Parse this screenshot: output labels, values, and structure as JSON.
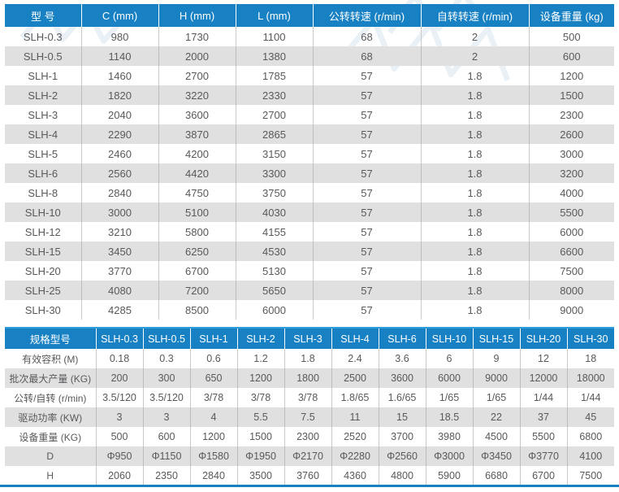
{
  "accent_color": "#1781c4",
  "alt_row_color": "#e0e0e0",
  "text_color": "#58595b",
  "watermark_icon": "zigzag-watermark",
  "table1": {
    "headers": [
      "型 号",
      "C (mm)",
      "H (mm)",
      "L (mm)",
      "公转转速 (r/min)",
      "自转转速 (r/min)",
      "设备重量 (kg)"
    ],
    "rows": [
      [
        "SLH-0.3",
        "980",
        "1730",
        "1100",
        "68",
        "2",
        "500"
      ],
      [
        "SLH-0.5",
        "1140",
        "2000",
        "1380",
        "68",
        "2",
        "600"
      ],
      [
        "SLH-1",
        "1460",
        "2700",
        "1785",
        "57",
        "1.8",
        "1200"
      ],
      [
        "SLH-2",
        "1820",
        "3220",
        "2330",
        "57",
        "1.8",
        "1500"
      ],
      [
        "SLH-3",
        "2040",
        "3600",
        "2700",
        "57",
        "1.8",
        "2300"
      ],
      [
        "SLH-4",
        "2290",
        "3870",
        "2865",
        "57",
        "1.8",
        "2600"
      ],
      [
        "SLH-5",
        "2460",
        "4200",
        "3150",
        "57",
        "1.8",
        "3000"
      ],
      [
        "SLH-6",
        "2560",
        "4420",
        "3300",
        "57",
        "1.8",
        "3200"
      ],
      [
        "SLH-8",
        "2840",
        "4750",
        "3750",
        "57",
        "1.8",
        "4000"
      ],
      [
        "SLH-10",
        "3000",
        "5100",
        "4030",
        "57",
        "1.8",
        "5500"
      ],
      [
        "SLH-12",
        "3210",
        "5800",
        "4155",
        "57",
        "1.8",
        "6000"
      ],
      [
        "SLH-15",
        "3450",
        "6250",
        "4530",
        "57",
        "1.8",
        "6600"
      ],
      [
        "SLH-20",
        "3770",
        "6700",
        "5130",
        "57",
        "1.8",
        "7500"
      ],
      [
        "SLH-25",
        "4080",
        "7200",
        "5650",
        "57",
        "1.8",
        "8000"
      ],
      [
        "SLH-30",
        "4285",
        "8500",
        "6000",
        "57",
        "1.8",
        "9000"
      ]
    ]
  },
  "table2": {
    "header_label": "规格型号",
    "models": [
      "SLH-0.3",
      "SLH-0.5",
      "SLH-1",
      "SLH-2",
      "SLH-3",
      "SLH-4",
      "SLH-6",
      "SLH-10",
      "SLH-15",
      "SLH-20",
      "SLH-30"
    ],
    "rows": [
      {
        "label": "有效容积 (M)",
        "values": [
          "0.18",
          "0.3",
          "0.6",
          "1.2",
          "1.8",
          "2.4",
          "3.6",
          "6",
          "9",
          "12",
          "18"
        ]
      },
      {
        "label": "批次最大产量 (KG)",
        "values": [
          "200",
          "300",
          "650",
          "1200",
          "1800",
          "2500",
          "3600",
          "6000",
          "9000",
          "12000",
          "18000"
        ]
      },
      {
        "label": "公转/自转 (r/min)",
        "values": [
          "3.5/120",
          "3.5/120",
          "3/78",
          "3/78",
          "3/78",
          "1.8/65",
          "1.6/65",
          "1/65",
          "1/65",
          "1/44",
          "1/44"
        ]
      },
      {
        "label": "驱动功率 (KW)",
        "values": [
          "3",
          "3",
          "4",
          "5.5",
          "7.5",
          "11",
          "15",
          "18.5",
          "22",
          "37",
          "45"
        ]
      },
      {
        "label": "设备重量 (KG)",
        "values": [
          "500",
          "600",
          "1200",
          "1500",
          "2300",
          "2520",
          "3700",
          "3980",
          "4500",
          "5500",
          "6800"
        ]
      },
      {
        "label": "D",
        "values": [
          "Φ950",
          "Φ1150",
          "Φ1580",
          "Φ1950",
          "Φ2170",
          "Φ2280",
          "Φ2560",
          "Φ3000",
          "Φ3450",
          "Φ3770",
          "4100"
        ]
      },
      {
        "label": "H",
        "values": [
          "2060",
          "2350",
          "2840",
          "3500",
          "3760",
          "4360",
          "4800",
          "5900",
          "6680",
          "6700",
          "7500"
        ]
      }
    ]
  }
}
